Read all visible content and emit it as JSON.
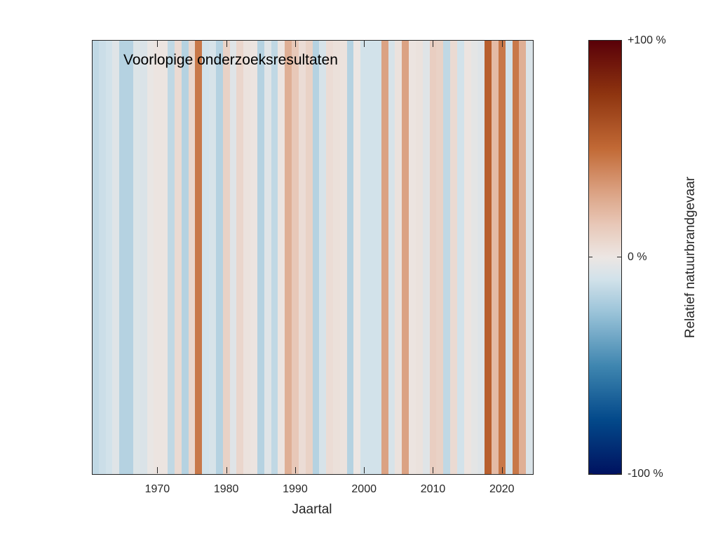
{
  "chart_data": {
    "type": "heatmap",
    "subtype": "climate-stripes",
    "annotation": "Voorlopige onderzoeksresultaten",
    "xlabel": "Jaartal",
    "colorbar_label": "Relatief natuurbrandgevaar",
    "colorbar_ticks": [
      {
        "value": 1,
        "label": "+100 %"
      },
      {
        "value": 0,
        "label": "0 %"
      },
      {
        "value": -1,
        "label": "-100 %"
      }
    ],
    "xlim": [
      1960.5,
      2024.5
    ],
    "xticks": [
      1970,
      1980,
      1990,
      2000,
      2010,
      2020
    ],
    "years_start": 1961,
    "values": [
      -0.15,
      -0.12,
      -0.1,
      -0.05,
      -0.18,
      -0.18,
      -0.06,
      -0.07,
      -0.01,
      0.01,
      0.01,
      -0.15,
      0.06,
      -0.18,
      0.08,
      0.45,
      -0.1,
      -0.08,
      -0.18,
      0.1,
      -0.05,
      0.08,
      0.02,
      0.01,
      -0.18,
      -0.05,
      -0.15,
      0.01,
      0.25,
      0.15,
      0.05,
      0.1,
      -0.18,
      -0.08,
      0.05,
      0.03,
      0.02,
      -0.18,
      0.0,
      -0.1,
      -0.1,
      -0.1,
      0.3,
      -0.08,
      0.02,
      0.3,
      0.01,
      0.02,
      -0.05,
      0.12,
      0.1,
      -0.15,
      0.06,
      -0.1,
      0.01,
      -0.03,
      -0.05,
      0.55,
      0.2,
      0.45,
      -0.1,
      0.45,
      0.25,
      -0.07
    ],
    "colormap": [
      "#001260",
      "#03498a",
      "#3f86b0",
      "#9cc4d9",
      "#d2e2ea",
      "#ece6e3",
      "#e8c8b8",
      "#dba283",
      "#c26a36",
      "#8f3510",
      "#590008"
    ]
  }
}
